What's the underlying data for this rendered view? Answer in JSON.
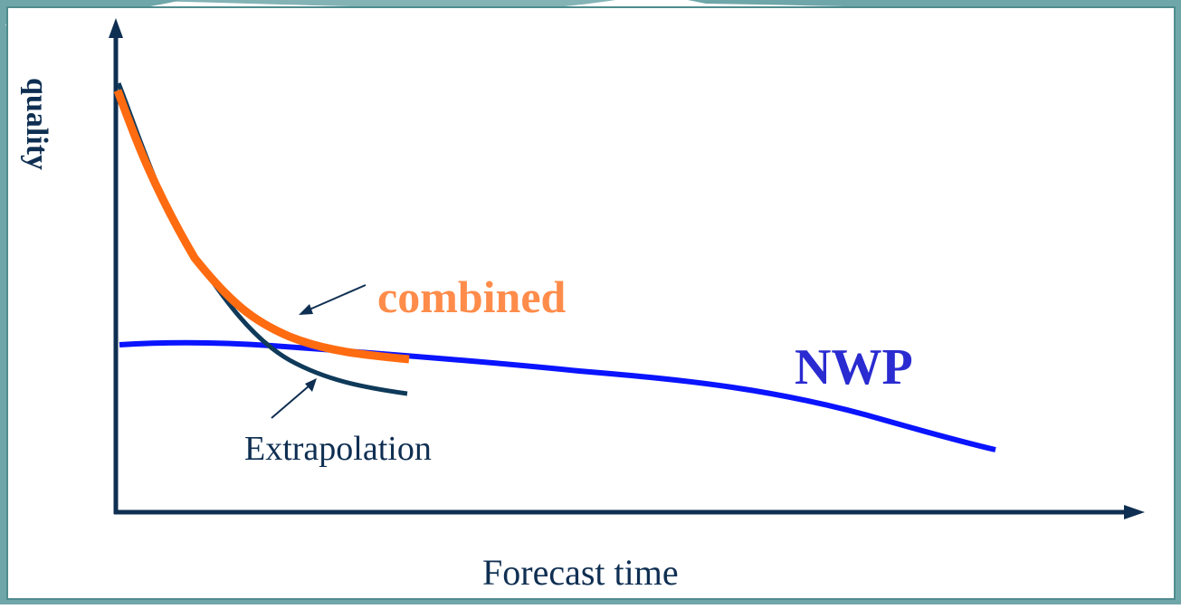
{
  "colors": {
    "background": "#ffffff",
    "frame_teal": "#6fa6a9",
    "axis": "#0f2f52",
    "nwp": "#0a14ff",
    "extrapolation": "#0f3a5a",
    "combined": "#ff6b10",
    "combined_label": "#ff8c4a",
    "nwp_label": "#2a2bd0",
    "text": "#0f2f52"
  },
  "labels": {
    "y_axis": "quality",
    "x_axis": "Forecast time",
    "combined": "combined",
    "nwp": "NWP",
    "extrapolation": "Extrapolation"
  },
  "icons": {
    "x_arrowhead": "arrowhead-right",
    "y_arrowhead": "arrowhead-up"
  }
}
